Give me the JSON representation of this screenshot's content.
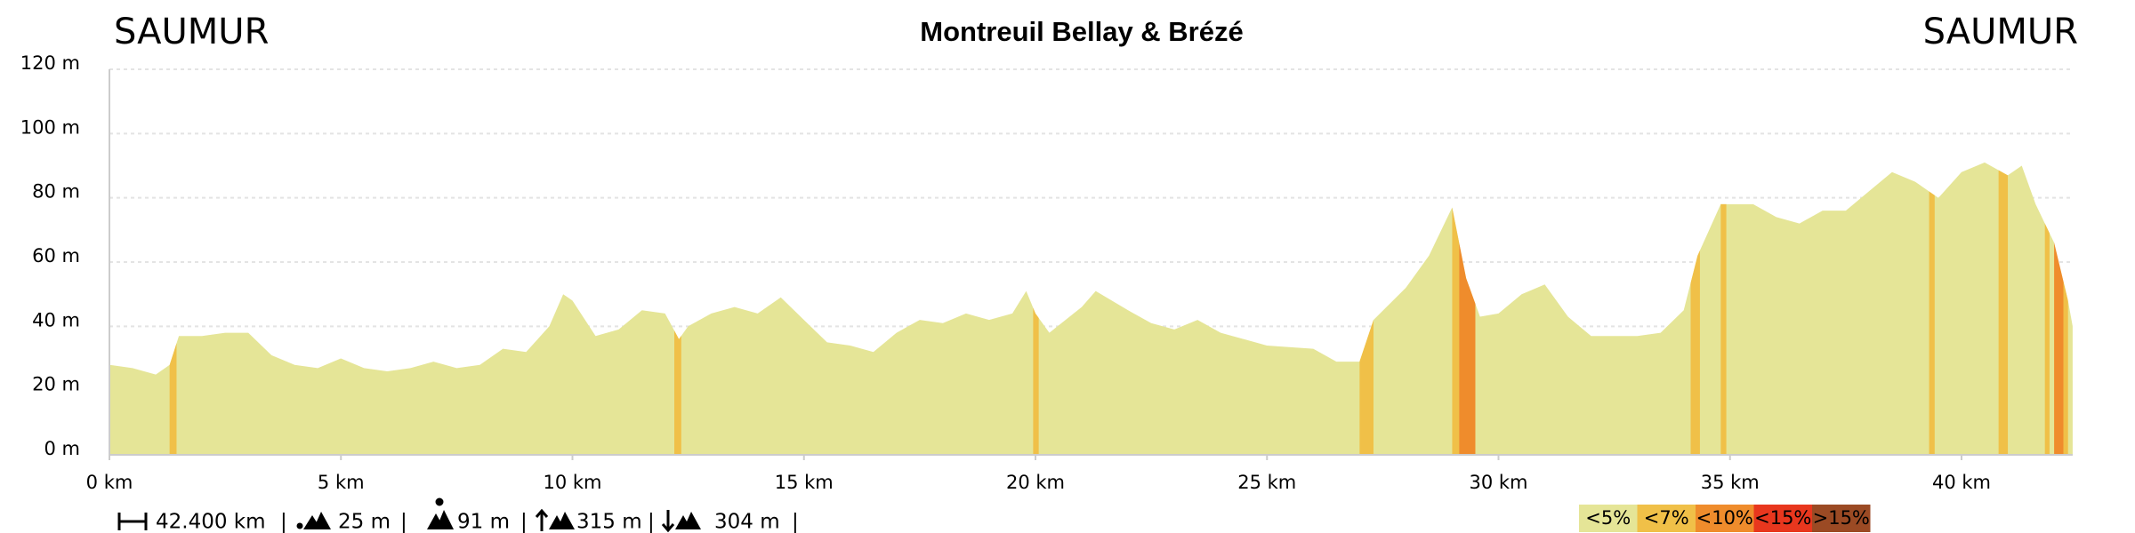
{
  "chart_data": {
    "type": "area",
    "title": "Montreuil Bellay & Brézé",
    "start_label": "SAUMUR",
    "end_label": "SAUMUR",
    "x": [
      0,
      0.5,
      1,
      1.3,
      1.5,
      2,
      2.5,
      3,
      3.5,
      4,
      4.5,
      5,
      5.5,
      6,
      6.5,
      7,
      7.5,
      8,
      8.5,
      9,
      9.5,
      9.8,
      10,
      10.5,
      11,
      11.5,
      12,
      12.3,
      12.5,
      13,
      13.5,
      14,
      14.5,
      15,
      15.5,
      16,
      16.5,
      17,
      17.5,
      18,
      18.5,
      19,
      19.5,
      19.8,
      20,
      20.3,
      21,
      21.3,
      22,
      22.5,
      23,
      23.5,
      24,
      24.5,
      25,
      26,
      26.5,
      27,
      27.3,
      28,
      28.5,
      29,
      29.3,
      29.6,
      30,
      30.5,
      31,
      31.5,
      32,
      33,
      33.5,
      34,
      34.3,
      34.8,
      35.5,
      36,
      36.5,
      37,
      37.5,
      38,
      38.5,
      39,
      39.5,
      40,
      40.5,
      41,
      41.3,
      41.6,
      42,
      42.3,
      42.4
    ],
    "values": [
      28,
      27,
      25,
      28,
      37,
      37,
      38,
      38,
      31,
      28,
      27,
      30,
      27,
      26,
      27,
      29,
      27,
      28,
      33,
      32,
      40,
      50,
      48,
      37,
      39,
      45,
      44,
      36,
      40,
      44,
      46,
      44,
      49,
      42,
      35,
      34,
      32,
      38,
      42,
      41,
      44,
      42,
      44,
      51,
      44,
      38,
      46,
      51,
      45,
      41,
      39,
      42,
      38,
      36,
      34,
      33,
      29,
      29,
      42,
      52,
      62,
      77,
      55,
      43,
      44,
      50,
      53,
      43,
      37,
      37,
      38,
      45,
      62,
      78,
      78,
      74,
      72,
      76,
      76,
      82,
      88,
      85,
      80,
      88,
      91,
      87,
      90,
      78,
      66,
      48,
      40
    ],
    "gradient_segments": [
      {
        "from": 1.3,
        "to": 1.45,
        "color": "#f0c048"
      },
      {
        "from": 12.2,
        "to": 12.35,
        "color": "#f0c048"
      },
      {
        "from": 19.95,
        "to": 20.07,
        "color": "#f0c048"
      },
      {
        "from": 27.0,
        "to": 27.3,
        "color": "#f0c048"
      },
      {
        "from": 29.0,
        "to": 29.15,
        "color": "#f0c048"
      },
      {
        "from": 29.15,
        "to": 29.5,
        "color": "#ef8c2c"
      },
      {
        "from": 34.15,
        "to": 34.35,
        "color": "#f0c048"
      },
      {
        "from": 34.8,
        "to": 34.92,
        "color": "#f0c048"
      },
      {
        "from": 39.3,
        "to": 39.42,
        "color": "#f0c048"
      },
      {
        "from": 40.8,
        "to": 41.0,
        "color": "#f0c048"
      },
      {
        "from": 41.8,
        "to": 41.9,
        "color": "#f0c048"
      },
      {
        "from": 42.0,
        "to": 42.2,
        "color": "#ef8c2c"
      },
      {
        "from": 42.2,
        "to": 42.3,
        "color": "#f0c048"
      }
    ],
    "xlim": [
      0,
      42.4
    ],
    "ylim": [
      0,
      120
    ],
    "xticks": [
      {
        "value": 0,
        "label": "0 km"
      },
      {
        "value": 5,
        "label": "5 km"
      },
      {
        "value": 10,
        "label": "10 km"
      },
      {
        "value": 15,
        "label": "15 km"
      },
      {
        "value": 20,
        "label": "20 km"
      },
      {
        "value": 25,
        "label": "25 km"
      },
      {
        "value": 30,
        "label": "30 km"
      },
      {
        "value": 35,
        "label": "35 km"
      },
      {
        "value": 40,
        "label": "40 km"
      }
    ],
    "yticks": [
      {
        "value": 0,
        "label": "0 m"
      },
      {
        "value": 20,
        "label": "20 m"
      },
      {
        "value": 40,
        "label": "40 m"
      },
      {
        "value": 60,
        "label": "60 m"
      },
      {
        "value": 80,
        "label": "80 m"
      },
      {
        "value": 100,
        "label": "100 m"
      },
      {
        "value": 120,
        "label": "120 m"
      }
    ],
    "grid": true,
    "legend": [
      {
        "label": "<5%",
        "color": "#e5e597"
      },
      {
        "label": "<7%",
        "color": "#f0c048"
      },
      {
        "label": "<10%",
        "color": "#ef8c2c"
      },
      {
        "label": "<15%",
        "color": "#e8371e"
      },
      {
        "label": ">15%",
        "color": "#9b4a24"
      }
    ],
    "stats": [
      "42.400 km",
      "25 m",
      "91 m",
      "315 m",
      "304 m"
    ],
    "separator": "|"
  }
}
